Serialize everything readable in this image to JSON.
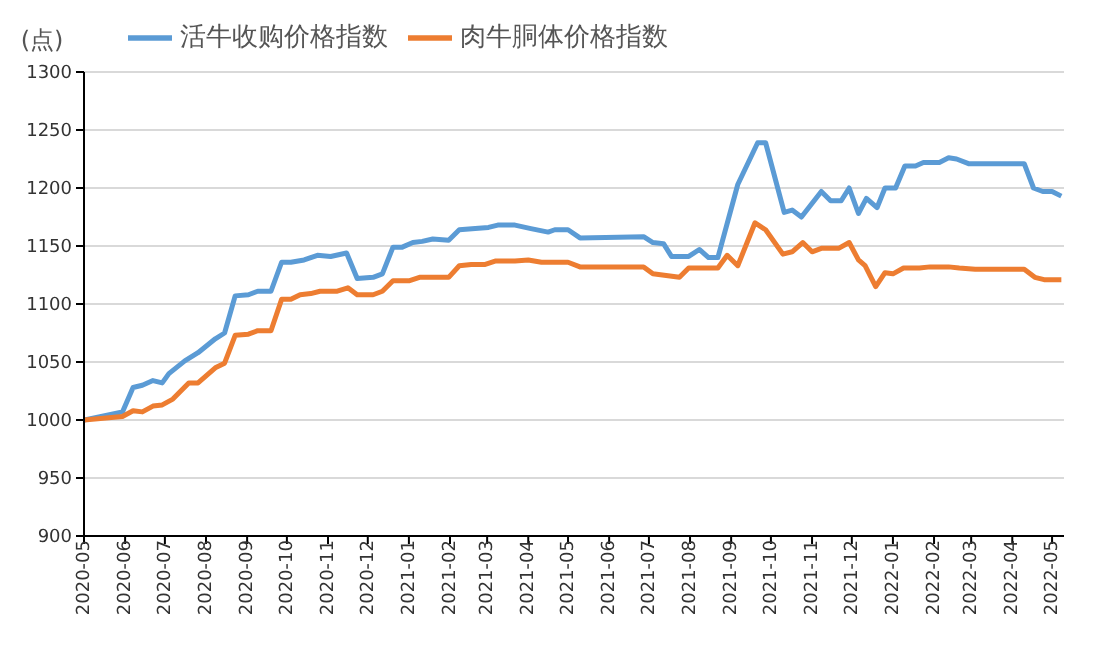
{
  "chart_data": {
    "type": "line",
    "ylabel": "(点)",
    "legend": "top",
    "grid": "y",
    "marker": "none",
    "line_style": "solid",
    "xlim": [
      "2020-05-01",
      "2022-05-10"
    ],
    "xticks": [
      "2020-05",
      "2020-06",
      "2020-07",
      "2020-08",
      "2020-09",
      "2020-10",
      "2020-11",
      "2020-12",
      "2021-01",
      "2021-02",
      "2021-03",
      "2021-04",
      "2021-05",
      "2021-06",
      "2021-07",
      "2021-08",
      "2021-09",
      "2021-10",
      "2021-11",
      "2021-12",
      "2022-01",
      "2022-02",
      "2022-03",
      "2022-04",
      "2022-05"
    ],
    "ylim": [
      900,
      1300
    ],
    "yticks": [
      900,
      950,
      1000,
      1050,
      1100,
      1150,
      1200,
      1250,
      1300
    ],
    "series": [
      {
        "name": "活牛收购价格指数",
        "color": "#5b9bd5",
        "x": [
          "2020-05-01",
          "2020-05-30",
          "2020-06-07",
          "2020-06-14",
          "2020-06-22",
          "2020-06-29",
          "2020-07-04",
          "2020-07-16",
          "2020-07-26",
          "2020-08-08",
          "2020-08-15",
          "2020-08-23",
          "2020-09-02",
          "2020-09-09",
          "2020-09-19",
          "2020-09-27",
          "2020-10-04",
          "2020-10-14",
          "2020-10-24",
          "2020-11-03",
          "2020-11-15",
          "2020-11-23",
          "2020-12-05",
          "2020-12-12",
          "2020-12-20",
          "2020-12-27",
          "2021-01-04",
          "2021-01-11",
          "2021-01-19",
          "2021-01-31",
          "2021-02-08",
          "2021-02-20",
          "2021-03-02",
          "2021-03-09",
          "2021-03-22",
          "2021-04-03",
          "2021-04-16",
          "2021-04-21",
          "2021-04-26",
          "2021-05-01",
          "2021-05-10",
          "2021-06-27",
          "2021-07-04",
          "2021-07-12",
          "2021-07-18",
          "2021-07-31",
          "2021-08-08",
          "2021-08-15",
          "2021-08-22",
          "2021-09-06",
          "2021-09-21",
          "2021-09-27",
          "2021-10-11",
          "2021-10-17",
          "2021-10-24",
          "2021-11-08",
          "2021-11-15",
          "2021-11-23",
          "2021-11-29",
          "2021-12-06",
          "2021-12-12",
          "2021-12-20",
          "2021-12-26",
          "2022-01-03",
          "2022-01-10",
          "2022-01-18",
          "2022-01-24",
          "2022-02-05",
          "2022-02-12",
          "2022-02-18",
          "2022-02-27",
          "2022-04-10",
          "2022-04-17",
          "2022-04-24",
          "2022-05-01",
          "2022-05-08"
        ],
        "values": [
          1000,
          1007,
          1028,
          1030,
          1034,
          1032,
          1040,
          1051,
          1058,
          1070,
          1075,
          1107,
          1108,
          1111,
          1111,
          1136,
          1136,
          1138,
          1142,
          1141,
          1144,
          1122,
          1123,
          1126,
          1149,
          1149,
          1153,
          1154,
          1156,
          1155,
          1164,
          1165,
          1166,
          1168,
          1168,
          1165,
          1162,
          1164,
          1164,
          1164,
          1157,
          1158,
          1153,
          1152,
          1141,
          1141,
          1147,
          1140,
          1140,
          1203,
          1239,
          1239,
          1179,
          1181,
          1175,
          1197,
          1189,
          1189,
          1200,
          1178,
          1191,
          1183,
          1200,
          1200,
          1219,
          1219,
          1222,
          1222,
          1226,
          1225,
          1221,
          1221,
          1200,
          1197,
          1197,
          1193
        ]
      },
      {
        "name": "肉牛胴体价格指数",
        "color": "#ed7d31",
        "x": [
          "2020-05-01",
          "2020-05-30",
          "2020-06-07",
          "2020-06-14",
          "2020-06-22",
          "2020-06-29",
          "2020-07-07",
          "2020-07-19",
          "2020-07-26",
          "2020-08-08",
          "2020-08-15",
          "2020-08-23",
          "2020-09-02",
          "2020-09-09",
          "2020-09-19",
          "2020-09-27",
          "2020-10-04",
          "2020-10-11",
          "2020-10-19",
          "2020-10-26",
          "2020-11-08",
          "2020-11-16",
          "2020-11-23",
          "2020-12-05",
          "2020-12-12",
          "2020-12-20",
          "2021-01-01",
          "2021-01-09",
          "2021-01-31",
          "2021-02-08",
          "2021-02-17",
          "2021-02-27",
          "2021-03-07",
          "2021-03-22",
          "2021-04-01",
          "2021-04-11",
          "2021-04-21",
          "2021-05-01",
          "2021-05-10",
          "2021-06-27",
          "2021-07-04",
          "2021-07-24",
          "2021-07-31",
          "2021-08-22",
          "2021-08-29",
          "2021-09-06",
          "2021-09-19",
          "2021-09-27",
          "2021-10-10",
          "2021-10-17",
          "2021-10-25",
          "2021-11-01",
          "2021-11-08",
          "2021-11-21",
          "2021-11-29",
          "2021-12-06",
          "2021-12-11",
          "2021-12-19",
          "2021-12-26",
          "2022-01-01",
          "2022-01-09",
          "2022-01-21",
          "2022-01-29",
          "2022-02-12",
          "2022-02-20",
          "2022-03-04",
          "2022-04-10",
          "2022-04-18",
          "2022-04-25",
          "2022-05-08"
        ],
        "values": [
          1000,
          1003,
          1008,
          1007,
          1012,
          1013,
          1018,
          1032,
          1032,
          1045,
          1049,
          1073,
          1074,
          1077,
          1077,
          1104,
          1104,
          1108,
          1109,
          1111,
          1111,
          1114,
          1108,
          1108,
          1111,
          1120,
          1120,
          1123,
          1123,
          1133,
          1134,
          1134,
          1137,
          1137,
          1138,
          1136,
          1136,
          1136,
          1132,
          1132,
          1126,
          1123,
          1131,
          1131,
          1142,
          1133,
          1170,
          1164,
          1143,
          1145,
          1153,
          1145,
          1148,
          1148,
          1153,
          1138,
          1133,
          1115,
          1127,
          1126,
          1131,
          1131,
          1132,
          1132,
          1131,
          1130,
          1130,
          1123,
          1121,
          1121
        ]
      }
    ]
  }
}
